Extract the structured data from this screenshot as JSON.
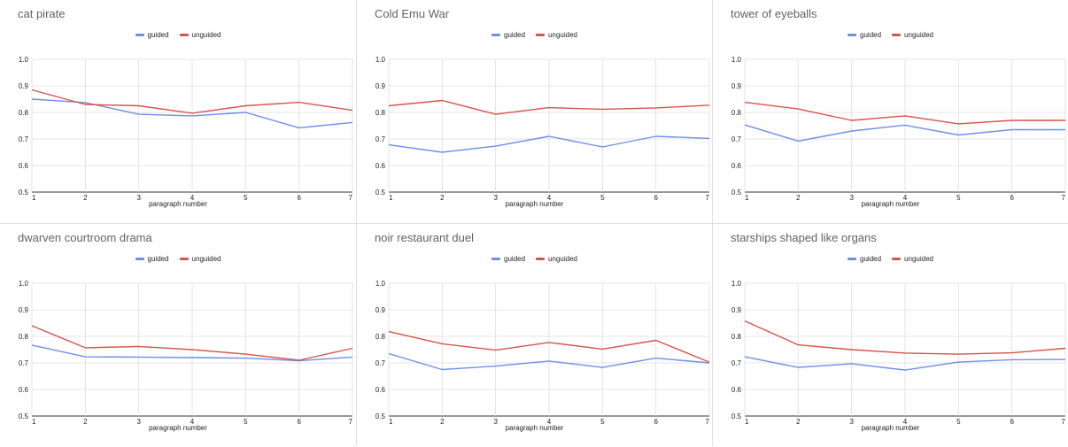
{
  "colors": {
    "guided": "#6d8fe8",
    "unguided": "#d5544a",
    "grid": "#dcdcdc",
    "axis": "#333333"
  },
  "chart_data": [
    {
      "type": "line",
      "title": "cat pirate",
      "xlabel": "paragraph number",
      "ylabel": "",
      "x": [
        1,
        2,
        3,
        4,
        5,
        6,
        7
      ],
      "ylim": [
        0.5,
        1.0
      ],
      "yticks": [
        "0.5",
        "0.6",
        "0.7",
        "0.8",
        "0.9",
        "1.0"
      ],
      "grid": true,
      "legend": "top-center",
      "series": [
        {
          "name": "guided",
          "values": [
            0.85,
            0.837,
            0.793,
            0.787,
            0.8,
            0.742,
            0.762
          ]
        },
        {
          "name": "unguided",
          "values": [
            0.885,
            0.83,
            0.825,
            0.797,
            0.825,
            0.838,
            0.808
          ]
        }
      ]
    },
    {
      "type": "line",
      "title": "Cold Emu War",
      "xlabel": "paragraph number",
      "ylabel": "",
      "x": [
        1,
        2,
        3,
        4,
        5,
        6,
        7
      ],
      "ylim": [
        0.5,
        1.0
      ],
      "yticks": [
        "0.5",
        "0.6",
        "0.7",
        "0.8",
        "0.9",
        "1.0"
      ],
      "grid": true,
      "legend": "top-center",
      "series": [
        {
          "name": "guided",
          "values": [
            0.678,
            0.65,
            0.673,
            0.71,
            0.67,
            0.71,
            0.702
          ]
        },
        {
          "name": "unguided",
          "values": [
            0.825,
            0.845,
            0.793,
            0.818,
            0.812,
            0.817,
            0.827
          ]
        }
      ]
    },
    {
      "type": "line",
      "title": "tower of eyeballs",
      "xlabel": "paragraph number",
      "ylabel": "",
      "x": [
        1,
        2,
        3,
        4,
        5,
        6,
        7
      ],
      "ylim": [
        0.5,
        1.0
      ],
      "yticks": [
        "0.5",
        "0.6",
        "0.7",
        "0.8",
        "0.9",
        "1.0"
      ],
      "grid": true,
      "legend": "top-center",
      "series": [
        {
          "name": "guided",
          "values": [
            0.753,
            0.692,
            0.73,
            0.752,
            0.715,
            0.735,
            0.735
          ]
        },
        {
          "name": "unguided",
          "values": [
            0.838,
            0.813,
            0.77,
            0.787,
            0.757,
            0.77,
            0.77
          ]
        }
      ]
    },
    {
      "type": "line",
      "title": "dwarven courtroom drama",
      "xlabel": "paragraph number",
      "ylabel": "",
      "x": [
        1,
        2,
        3,
        4,
        5,
        6,
        7
      ],
      "ylim": [
        0.5,
        1.0
      ],
      "yticks": [
        "0.5",
        "0.6",
        "0.7",
        "0.8",
        "0.9",
        "1.0"
      ],
      "grid": true,
      "legend": "top-center",
      "series": [
        {
          "name": "guided",
          "values": [
            0.767,
            0.723,
            0.722,
            0.72,
            0.718,
            0.708,
            0.722
          ]
        },
        {
          "name": "unguided",
          "values": [
            0.84,
            0.757,
            0.762,
            0.75,
            0.733,
            0.71,
            0.755
          ]
        }
      ]
    },
    {
      "type": "line",
      "title": "noir restaurant duel",
      "xlabel": "paragraph number",
      "ylabel": "",
      "x": [
        1,
        2,
        3,
        4,
        5,
        6,
        7
      ],
      "ylim": [
        0.5,
        1.0
      ],
      "yticks": [
        "0.5",
        "0.6",
        "0.7",
        "0.8",
        "0.9",
        "1.0"
      ],
      "grid": true,
      "legend": "top-center",
      "series": [
        {
          "name": "guided",
          "values": [
            0.735,
            0.675,
            0.688,
            0.707,
            0.683,
            0.718,
            0.7
          ]
        },
        {
          "name": "unguided",
          "values": [
            0.818,
            0.772,
            0.748,
            0.777,
            0.752,
            0.785,
            0.703
          ]
        }
      ]
    },
    {
      "type": "line",
      "title": "starships shaped like organs",
      "xlabel": "paragraph number",
      "ylabel": "",
      "x": [
        1,
        2,
        3,
        4,
        5,
        6,
        7
      ],
      "ylim": [
        0.5,
        1.0
      ],
      "yticks": [
        "0.5",
        "0.6",
        "0.7",
        "0.8",
        "0.9",
        "1.0"
      ],
      "grid": true,
      "legend": "top-center",
      "series": [
        {
          "name": "guided",
          "values": [
            0.723,
            0.683,
            0.697,
            0.673,
            0.703,
            0.712,
            0.713
          ]
        },
        {
          "name": "unguided",
          "values": [
            0.858,
            0.768,
            0.75,
            0.737,
            0.733,
            0.738,
            0.755
          ]
        }
      ]
    }
  ]
}
